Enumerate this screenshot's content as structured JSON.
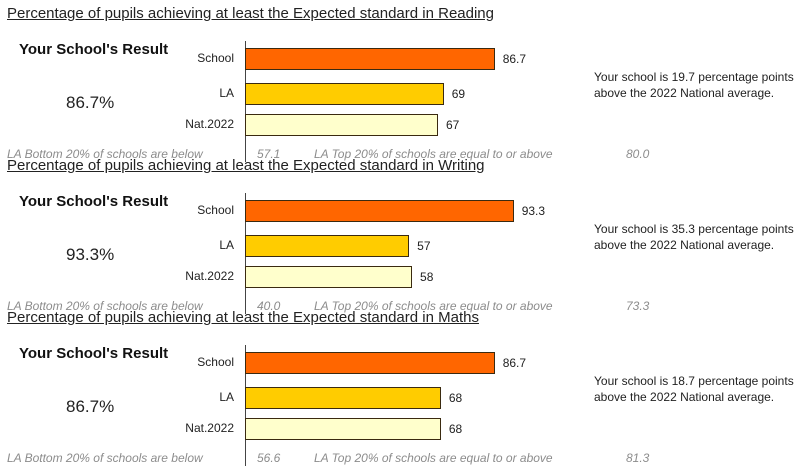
{
  "chart_data": [
    {
      "type": "bar",
      "orientation": "horizontal",
      "title": "Percentage of pupils achieving at least the Expected standard in Reading",
      "categories": [
        "School",
        "LA",
        "Nat.2022"
      ],
      "values": [
        86.7,
        69,
        67
      ],
      "value_labels": [
        "86.7",
        "69",
        "67"
      ],
      "colors": [
        "#ff6600",
        "#ffcc00",
        "#ffffcc"
      ],
      "xlim": [
        0,
        100
      ],
      "result_label": "Your School's Result",
      "result_value": "86.7%",
      "note": "Your school is 19.7 percentage points above the 2022 National average.",
      "footer": {
        "bottom_label": "LA Bottom 20% of schools are below",
        "bottom_value": "57.1",
        "top_label": "LA Top 20% of schools are equal to or above",
        "top_value": "80.0"
      }
    },
    {
      "type": "bar",
      "orientation": "horizontal",
      "title": "Percentage of pupils achieving at least the Expected standard in Writing",
      "categories": [
        "School",
        "LA",
        "Nat.2022"
      ],
      "values": [
        93.3,
        57,
        58
      ],
      "value_labels": [
        "93.3",
        "57",
        "58"
      ],
      "colors": [
        "#ff6600",
        "#ffcc00",
        "#ffffcc"
      ],
      "xlim": [
        0,
        100
      ],
      "result_label": "Your School's Result",
      "result_value": "93.3%",
      "note": "Your school is 35.3 percentage points above the 2022 National average.",
      "footer": {
        "bottom_label": "LA Bottom 20% of schools are below",
        "bottom_value": "40.0",
        "top_label": "LA Top 20% of schools are equal to or above",
        "top_value": "73.3"
      }
    },
    {
      "type": "bar",
      "orientation": "horizontal",
      "title": "Percentage of pupils achieving at least the Expected standard in Maths",
      "categories": [
        "School",
        "LA",
        "Nat.2022"
      ],
      "values": [
        86.7,
        68,
        68
      ],
      "value_labels": [
        "86.7",
        "68",
        "68"
      ],
      "colors": [
        "#ff6600",
        "#ffcc00",
        "#ffffcc"
      ],
      "xlim": [
        0,
        100
      ],
      "result_label": "Your School's Result",
      "result_value": "86.7%",
      "note": "Your school is 18.7 percentage points above the 2022 National average.",
      "footer": {
        "bottom_label": "LA Bottom 20% of schools are below",
        "bottom_value": "56.6",
        "top_label": "LA Top 20% of schools are equal to or above",
        "top_value": "81.3"
      }
    }
  ]
}
